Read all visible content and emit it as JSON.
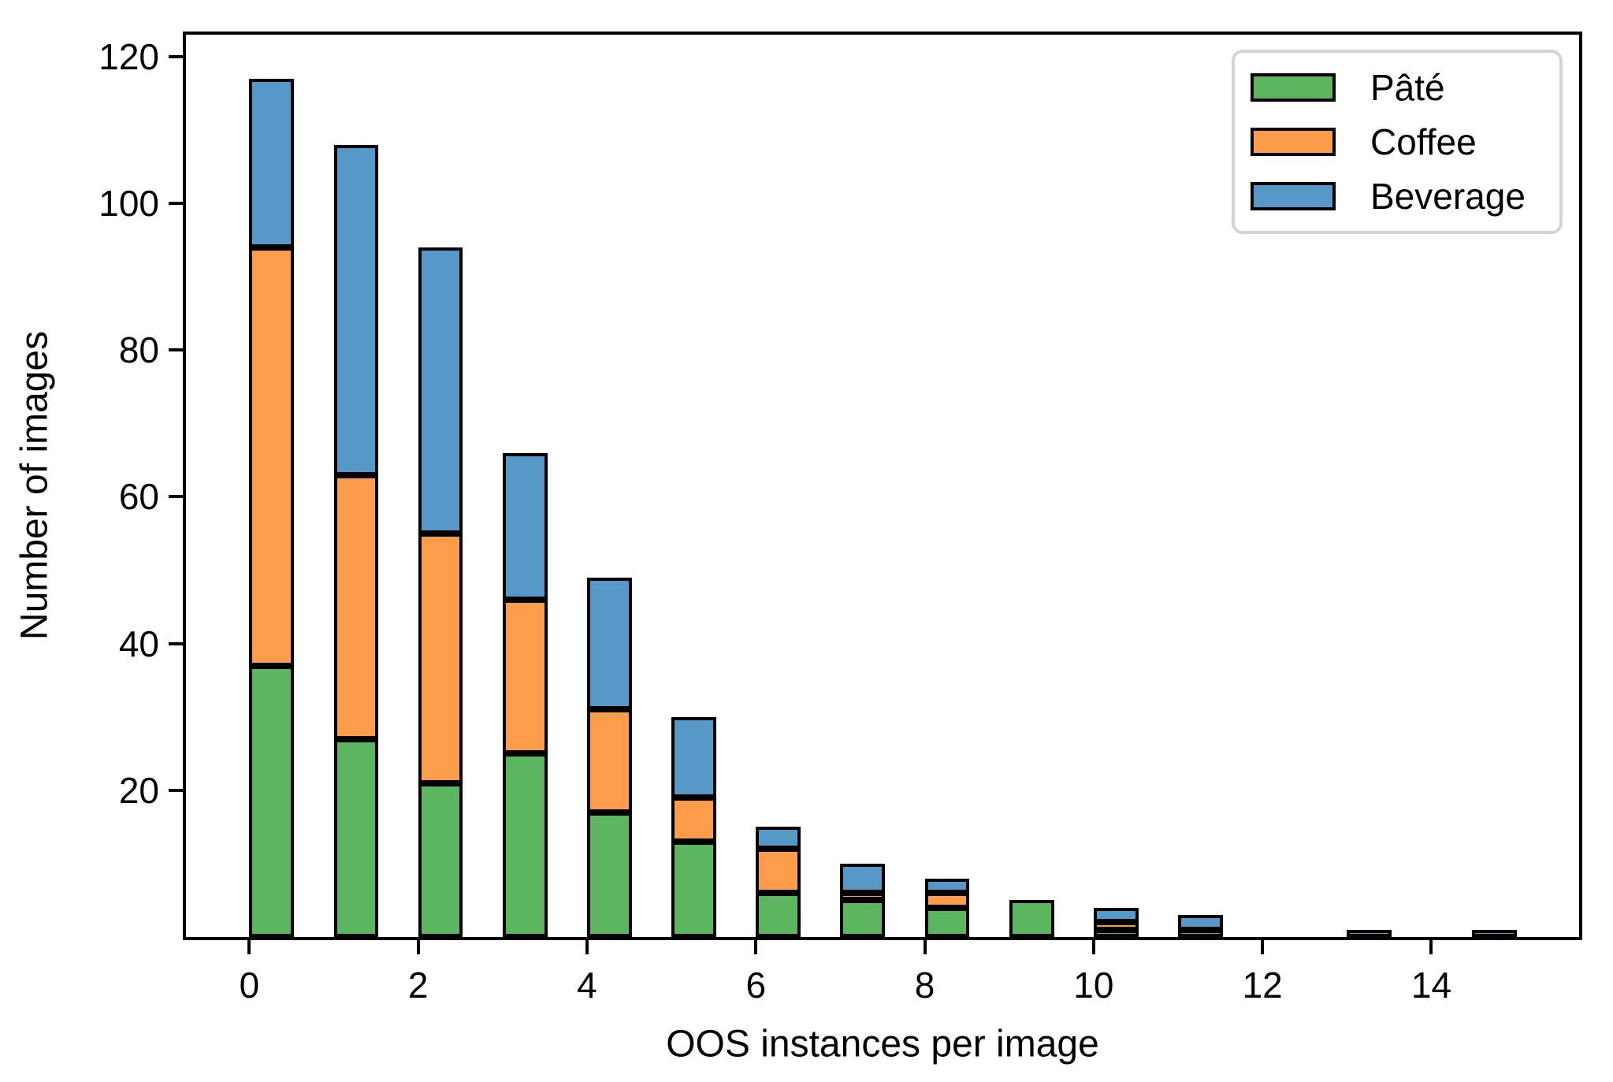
{
  "chart_data": {
    "type": "bar",
    "stacked": true,
    "title": "",
    "xlabel": "OOS instances per image",
    "ylabel": "Number of images",
    "xlim": [
      -0.75,
      15.75
    ],
    "ylim": [
      0,
      123
    ],
    "bar_width": 0.53,
    "grid": false,
    "legend_position": "upper right",
    "x_ticks": [
      0,
      2,
      4,
      6,
      8,
      10,
      12,
      14
    ],
    "y_ticks": [
      20,
      40,
      60,
      80,
      100,
      120
    ],
    "categories": [
      0,
      1,
      2,
      3,
      4,
      5,
      6,
      7,
      8,
      9,
      10,
      11,
      12,
      13,
      14,
      15
    ],
    "bar_draw_x_left": [
      0,
      1,
      2,
      3,
      4,
      5,
      6,
      7,
      8,
      9,
      10,
      11,
      12,
      13,
      14,
      14.48
    ],
    "series": [
      {
        "name": "Pâté",
        "color": "#5cb65f",
        "values": [
          37,
          27,
          21,
          25,
          17,
          13,
          6,
          5,
          4,
          5,
          1,
          1,
          0,
          0,
          0,
          0
        ]
      },
      {
        "name": "Coffee",
        "color": "#fd9d4c",
        "values": [
          57,
          36,
          34,
          21,
          14,
          6,
          6,
          1,
          2,
          0,
          1,
          0,
          0,
          0,
          0,
          0
        ]
      },
      {
        "name": "Beverage",
        "color": "#5699c8",
        "values": [
          23,
          45,
          39,
          20,
          18,
          11,
          3,
          4,
          2,
          0,
          2,
          2,
          0,
          1,
          0,
          1
        ]
      }
    ],
    "edge_color": "#000000"
  }
}
